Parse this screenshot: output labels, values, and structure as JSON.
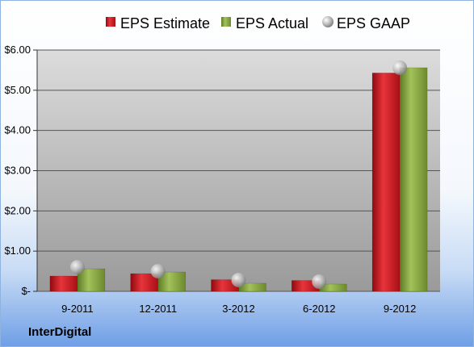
{
  "brand": "InterDigital",
  "colors": {
    "estimate": "#c8141c",
    "actual": "#7e9e3a",
    "gaap": "#a8a8a8",
    "plot_bg_top": "#d8d8d8",
    "plot_bg_bottom": "#9c9c9c"
  },
  "chart_data": {
    "type": "bar",
    "categories": [
      "9-2011",
      "12-2011",
      "3-2012",
      "6-2012",
      "9-2012"
    ],
    "series": [
      {
        "name": "EPS Estimate",
        "kind": "bar",
        "values": [
          0.38,
          0.44,
          0.29,
          0.27,
          5.43
        ]
      },
      {
        "name": "EPS Actual",
        "kind": "bar",
        "values": [
          0.56,
          0.48,
          0.2,
          0.18,
          5.56
        ]
      },
      {
        "name": "EPS GAAP",
        "kind": "marker",
        "values": [
          0.6,
          0.5,
          0.28,
          0.24,
          5.56
        ]
      }
    ],
    "yticks": [
      0,
      1,
      2,
      3,
      4,
      5,
      6
    ],
    "ytick_labels": [
      "$-",
      "$1.00",
      "$2.00",
      "$3.00",
      "$4.00",
      "$5.00",
      "$6.00"
    ],
    "ylim": [
      0,
      6
    ],
    "grid": true,
    "legend_position": "top"
  }
}
